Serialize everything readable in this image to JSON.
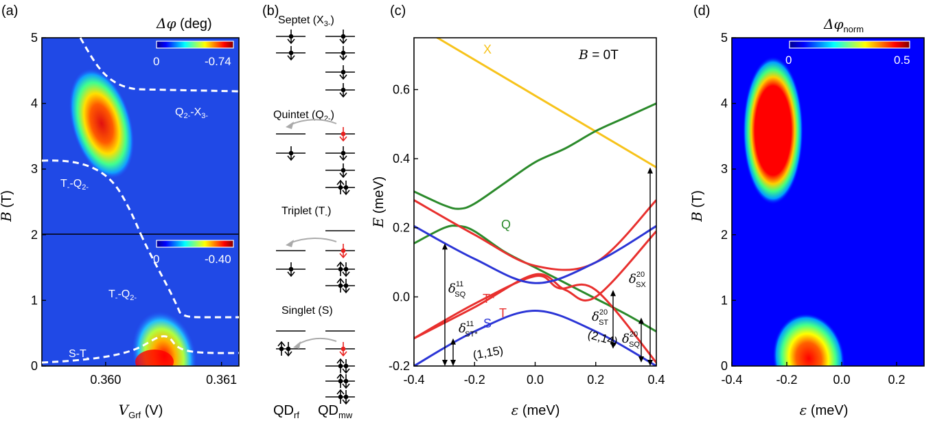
{
  "panels": {
    "a": {
      "label": "(a)",
      "cb_title_symbol": "Δφ",
      "cb_title_unit": " (deg)",
      "colorbar_top": {
        "min": "0",
        "max": "-0.74"
      },
      "colorbar_bottom": {
        "min": "0",
        "max": "-0.40"
      },
      "ylabel": "B",
      "ylabel_unit": " (T)",
      "xlabel": "V",
      "xlabel_sub": "Grf",
      "xlabel_unit": " (V)",
      "yticks": [
        "0",
        "1",
        "2",
        "3",
        "4",
        "5"
      ],
      "xticks": [
        "0.360",
        "0.361"
      ],
      "annotations": {
        "q2x3_pre": "Q",
        "q2x3_sub1": "2-",
        "q2x3_mid": "-X",
        "q2x3_sub2": "3-",
        "tq_top_pre": "T",
        "tq_top_sub1": "-",
        "tq_top_mid": "-Q",
        "tq_top_sub2": "2-",
        "tq_bot_pre": "T",
        "tq_bot_sub1": "-",
        "tq_bot_mid": "-Q",
        "tq_bot_sub2": "2-",
        "st_pre": "S-T",
        "st_sub": "-"
      }
    },
    "b": {
      "label": "(b)",
      "septet": {
        "pre": "Septet (X",
        "sub": "3-",
        "post": ")"
      },
      "quintet": {
        "pre": "Quintet (Q",
        "sub": "2-",
        "post": ")"
      },
      "triplet": {
        "pre": "Triplet (T",
        "sub": "-",
        "post": ")"
      },
      "singlet": "Singlet (S)",
      "qd_rf": {
        "main": "QD",
        "sub": "rf"
      },
      "qd_mw": {
        "main": "QD",
        "sub": "mw"
      }
    },
    "c": {
      "label": "(c)",
      "field_label": {
        "var": "B",
        "val": " = 0T"
      },
      "ylabel": "E",
      "ylabel_unit": " (meV)",
      "xlabel": "ε",
      "xlabel_unit": " (meV)",
      "curve_labels": {
        "X": "X",
        "Q": "Q",
        "Tstar": "T*",
        "T": "T",
        "S": "S"
      },
      "charge_labels": {
        "left": "(1,15)",
        "right": "(2,14)"
      },
      "deltas": {
        "sq11": {
          "sup": "11",
          "sub": "SQ"
        },
        "st11": {
          "sup": "11",
          "sub": "ST*"
        },
        "sx20": {
          "sup": "20",
          "sub": "SX"
        },
        "st20": {
          "sup": "20",
          "sub": "ST"
        },
        "sq20": {
          "sup": "20",
          "sub": "SQ"
        },
        "symbol": "δ"
      }
    },
    "d": {
      "label": "(d)",
      "cb_title": "Δφ",
      "cb_title_sub": "norm",
      "colorbar": {
        "min": "0",
        "max": "0.5"
      },
      "ylabel": "B",
      "ylabel_unit": " (T)",
      "xlabel": "ε",
      "xlabel_unit": " (meV)",
      "yticks": [
        "0",
        "1",
        "2",
        "3",
        "4",
        "5"
      ],
      "xticks": [
        "-0.4",
        "-0.2",
        "0.0",
        "0.2"
      ]
    }
  },
  "chart_data": [
    {
      "type": "heatmap",
      "panel": "a",
      "xlabel": "V_Grf (V)",
      "ylabel": "B (T)",
      "xlim": [
        0.35945,
        0.36115
      ],
      "ylim": [
        0,
        5
      ],
      "colorbar_ranges": [
        [
          0,
          -0.74
        ],
        [
          0,
          -0.4
        ]
      ]
    },
    {
      "type": "line",
      "panel": "c",
      "xlabel": "ε (meV)",
      "ylabel": "E (meV)",
      "xlim": [
        -0.4,
        0.4
      ],
      "ylim": [
        -0.2,
        0.75
      ],
      "xticks": [
        "-0.4",
        "-0.2",
        "0.0",
        "0.2",
        "0.4"
      ],
      "yticks": [
        "-0.2",
        "0.0",
        "0.2",
        "0.4",
        "0.6"
      ],
      "series": [
        {
          "name": "X",
          "color": "#f7c31b",
          "x": [
            -0.4,
            0.4
          ],
          "y": [
            0.79,
            0.375
          ]
        },
        {
          "name": "Q",
          "color": "#2b8a2b",
          "x": [
            -0.4,
            -0.3,
            -0.25,
            -0.2,
            -0.1,
            0.0,
            0.1,
            0.2,
            0.3,
            0.4
          ],
          "y": [
            0.305,
            0.265,
            0.255,
            0.27,
            0.33,
            0.39,
            0.43,
            0.48,
            0.52,
            0.56
          ]
        },
        {
          "name": "Q",
          "color": "#2b8a2b",
          "x": [
            -0.4,
            -0.3,
            -0.25,
            -0.2,
            -0.1,
            0.0,
            0.1,
            0.2,
            0.3,
            0.4
          ],
          "y": [
            0.155,
            0.2,
            0.205,
            0.19,
            0.13,
            0.085,
            0.04,
            -0.005,
            -0.05,
            -0.1
          ]
        },
        {
          "name": "T*",
          "color": "#e8302e",
          "x": [
            -0.4,
            -0.2,
            0.0,
            0.2,
            0.4
          ],
          "y": [
            0.28,
            0.18,
            0.09,
            0.1,
            0.28
          ]
        },
        {
          "name": "T*",
          "color": "#e8302e",
          "x": [
            -0.4,
            -0.2,
            0.0,
            0.1,
            0.2,
            0.4
          ],
          "y": [
            -0.12,
            -0.03,
            0.065,
            0.02,
            0.0,
            0.19
          ]
        },
        {
          "name": "T",
          "color": "#e8302e",
          "x": [
            -0.4,
            -0.2,
            0.0,
            0.08,
            0.2,
            0.4
          ],
          "y": [
            -0.12,
            -0.02,
            0.06,
            0.025,
            0.02,
            -0.19
          ]
        },
        {
          "name": "S",
          "color": "#2b35d6",
          "x": [
            -0.4,
            -0.2,
            0.0,
            0.2,
            0.4
          ],
          "y": [
            0.205,
            0.11,
            0.04,
            0.1,
            0.205
          ]
        },
        {
          "name": "S",
          "color": "#2b35d6",
          "x": [
            -0.4,
            -0.2,
            0.0,
            0.2,
            0.4
          ],
          "y": [
            -0.2,
            -0.1,
            -0.04,
            -0.1,
            -0.2
          ]
        }
      ]
    },
    {
      "type": "heatmap",
      "panel": "d",
      "xlabel": "ε (meV)",
      "ylabel": "B (T)",
      "xlim": [
        -0.4,
        0.3
      ],
      "ylim": [
        0,
        5
      ],
      "colorbar_range": [
        0,
        0.5
      ]
    }
  ]
}
